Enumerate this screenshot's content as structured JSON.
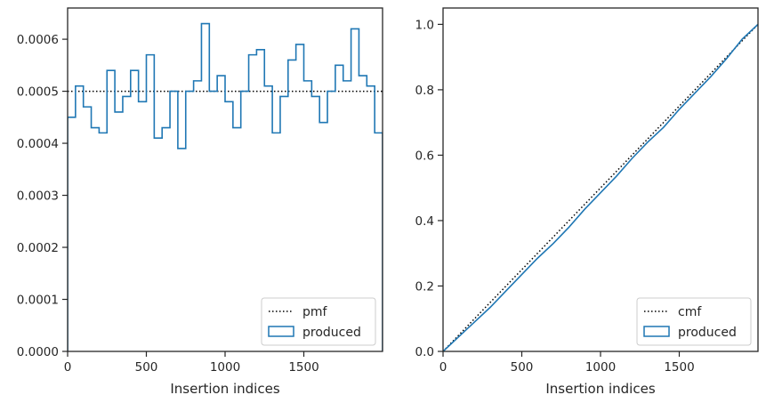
{
  "chart_data": [
    {
      "type": "line",
      "subtype": "step-histogram",
      "xlabel": "Insertion indices",
      "ylabel": "",
      "title": "",
      "xlim": [
        0,
        2000
      ],
      "ylim": [
        0,
        0.00066
      ],
      "xticks": [
        0,
        500,
        1000,
        1500
      ],
      "xtick_labels": [
        "0",
        "500",
        "1000",
        "1500"
      ],
      "yticks": [
        0,
        0.0001,
        0.0002,
        0.0003,
        0.0004,
        0.0005,
        0.0006
      ],
      "ytick_labels": [
        "0.0000",
        "0.0001",
        "0.0002",
        "0.0003",
        "0.0004",
        "0.0005",
        "0.0006"
      ],
      "grid": false,
      "legend_position": "lower-right",
      "series": [
        {
          "name": "pmf",
          "style": "dotted",
          "color": "#000000",
          "x": [
            0,
            2000
          ],
          "y": [
            0.0005,
            0.0005
          ]
        },
        {
          "name": "produced",
          "style": "step",
          "color": "#1f77b4",
          "bin_edges": [
            0,
            50,
            100,
            150,
            200,
            250,
            300,
            350,
            400,
            450,
            500,
            550,
            600,
            650,
            700,
            750,
            800,
            850,
            900,
            950,
            1000,
            1050,
            1100,
            1150,
            1200,
            1250,
            1300,
            1350,
            1400,
            1450,
            1500,
            1550,
            1600,
            1650,
            1700,
            1750,
            1800,
            1850,
            1900,
            1950,
            2000
          ],
          "values": [
            0.00045,
            0.00051,
            0.00047,
            0.00043,
            0.00042,
            0.00054,
            0.00046,
            0.00049,
            0.00054,
            0.00048,
            0.00057,
            0.00041,
            0.00043,
            0.0005,
            0.00039,
            0.0005,
            0.00052,
            0.00063,
            0.0005,
            0.00053,
            0.00048,
            0.00043,
            0.0005,
            0.00057,
            0.00058,
            0.00051,
            0.00042,
            0.00049,
            0.00056,
            0.00059,
            0.00052,
            0.00049,
            0.00044,
            0.0005,
            0.00055,
            0.00052,
            0.00062,
            0.00053,
            0.00051,
            0.00042
          ]
        }
      ]
    },
    {
      "type": "line",
      "subtype": "step-cumulative",
      "xlabel": "Insertion indices",
      "ylabel": "",
      "title": "",
      "xlim": [
        0,
        2000
      ],
      "ylim": [
        0,
        1.05
      ],
      "xticks": [
        0,
        500,
        1000,
        1500
      ],
      "xtick_labels": [
        "0",
        "500",
        "1000",
        "1500"
      ],
      "yticks": [
        0,
        0.2,
        0.4,
        0.6,
        0.8,
        1.0
      ],
      "ytick_labels": [
        "0.0",
        "0.2",
        "0.4",
        "0.6",
        "0.8",
        "1.0"
      ],
      "grid": false,
      "legend_position": "lower-right",
      "series": [
        {
          "name": "cmf",
          "style": "dotted",
          "color": "#000000",
          "x": [
            0,
            2000
          ],
          "y": [
            0,
            1
          ]
        },
        {
          "name": "produced",
          "style": "step",
          "color": "#1f77b4",
          "x": [
            0,
            100,
            200,
            300,
            400,
            500,
            600,
            700,
            800,
            900,
            1000,
            1100,
            1200,
            1300,
            1400,
            1500,
            1600,
            1700,
            1800,
            1900,
            2000
          ],
          "y": [
            0,
            0.045,
            0.09,
            0.135,
            0.185,
            0.235,
            0.285,
            0.33,
            0.38,
            0.435,
            0.485,
            0.535,
            0.59,
            0.64,
            0.685,
            0.74,
            0.79,
            0.84,
            0.895,
            0.955,
            1.0
          ]
        }
      ]
    }
  ]
}
